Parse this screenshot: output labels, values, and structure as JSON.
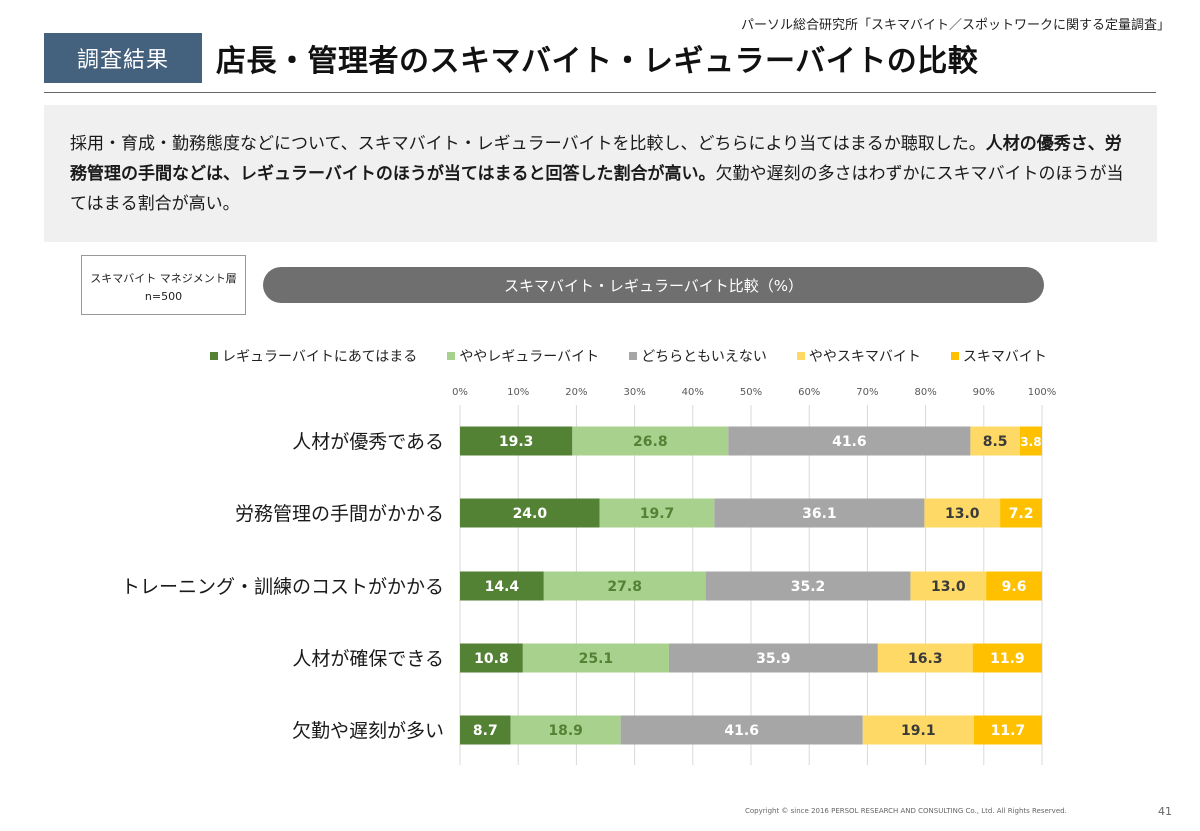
{
  "header": {
    "source": "パーソル総合研究所「スキマバイト／スポットワークに関する定量調査」",
    "badge": "調査結果",
    "title": "店長・管理者のスキマバイト・レギュラーバイトの比較"
  },
  "summary": {
    "part1": "採用・育成・勤務態度などについて、スキマバイト・レギュラーバイトを比較し、どちらにより当てはまるか聴取した。",
    "part2_bold": "人材の優秀さ、労務管理の手間などは、レギュラーバイトのほうが当てはまると回答した割合が高い。",
    "part3": "欠勤や遅刻の多さはわずかにスキマバイトのほうが当てはまる割合が高い。"
  },
  "sample": {
    "label": "スキマバイト マネジメント層",
    "n": "n=500"
  },
  "chart_title": "スキマバイト・レギュラーバイト比較（%）",
  "colors": {
    "regular": "#548235",
    "slightly_regular": "#a9d18e",
    "neither": "#a6a6a6",
    "slightly_skima": "#ffd966",
    "skima": "#ffc000"
  },
  "chart_data": {
    "type": "bar",
    "orientation": "horizontal",
    "stacked": true,
    "categories": [
      "人材が優秀である",
      "労務管理の手間がかかる",
      "トレーニング・訓練のコストがかかる",
      "人材が確保できる",
      "欠勤や遅刻が多い"
    ],
    "series": [
      {
        "name": "レギュラーバイトにあてはまる",
        "values": [
          19.3,
          24.0,
          14.4,
          10.8,
          8.7
        ]
      },
      {
        "name": "ややレギュラーバイト",
        "values": [
          26.8,
          19.7,
          27.8,
          25.1,
          18.9
        ]
      },
      {
        "name": "どちらともいえない",
        "values": [
          41.6,
          36.1,
          35.2,
          35.9,
          41.6
        ]
      },
      {
        "name": "ややスキマバイト",
        "values": [
          8.5,
          13.0,
          13.0,
          16.3,
          19.1
        ]
      },
      {
        "name": "スキマバイト",
        "values": [
          3.8,
          7.2,
          9.6,
          11.9,
          11.7
        ]
      }
    ],
    "xlim": [
      0,
      100
    ],
    "xticks": [
      "0%",
      "10%",
      "20%",
      "30%",
      "40%",
      "50%",
      "60%",
      "70%",
      "80%",
      "90%",
      "100%"
    ],
    "grid": true,
    "legend_position": "top"
  },
  "footer": {
    "copyright": "Copyright © since 2016 PERSOL RESEARCH AND CONSULTING Co., Ltd. All Rights Reserved.",
    "page": "41"
  }
}
